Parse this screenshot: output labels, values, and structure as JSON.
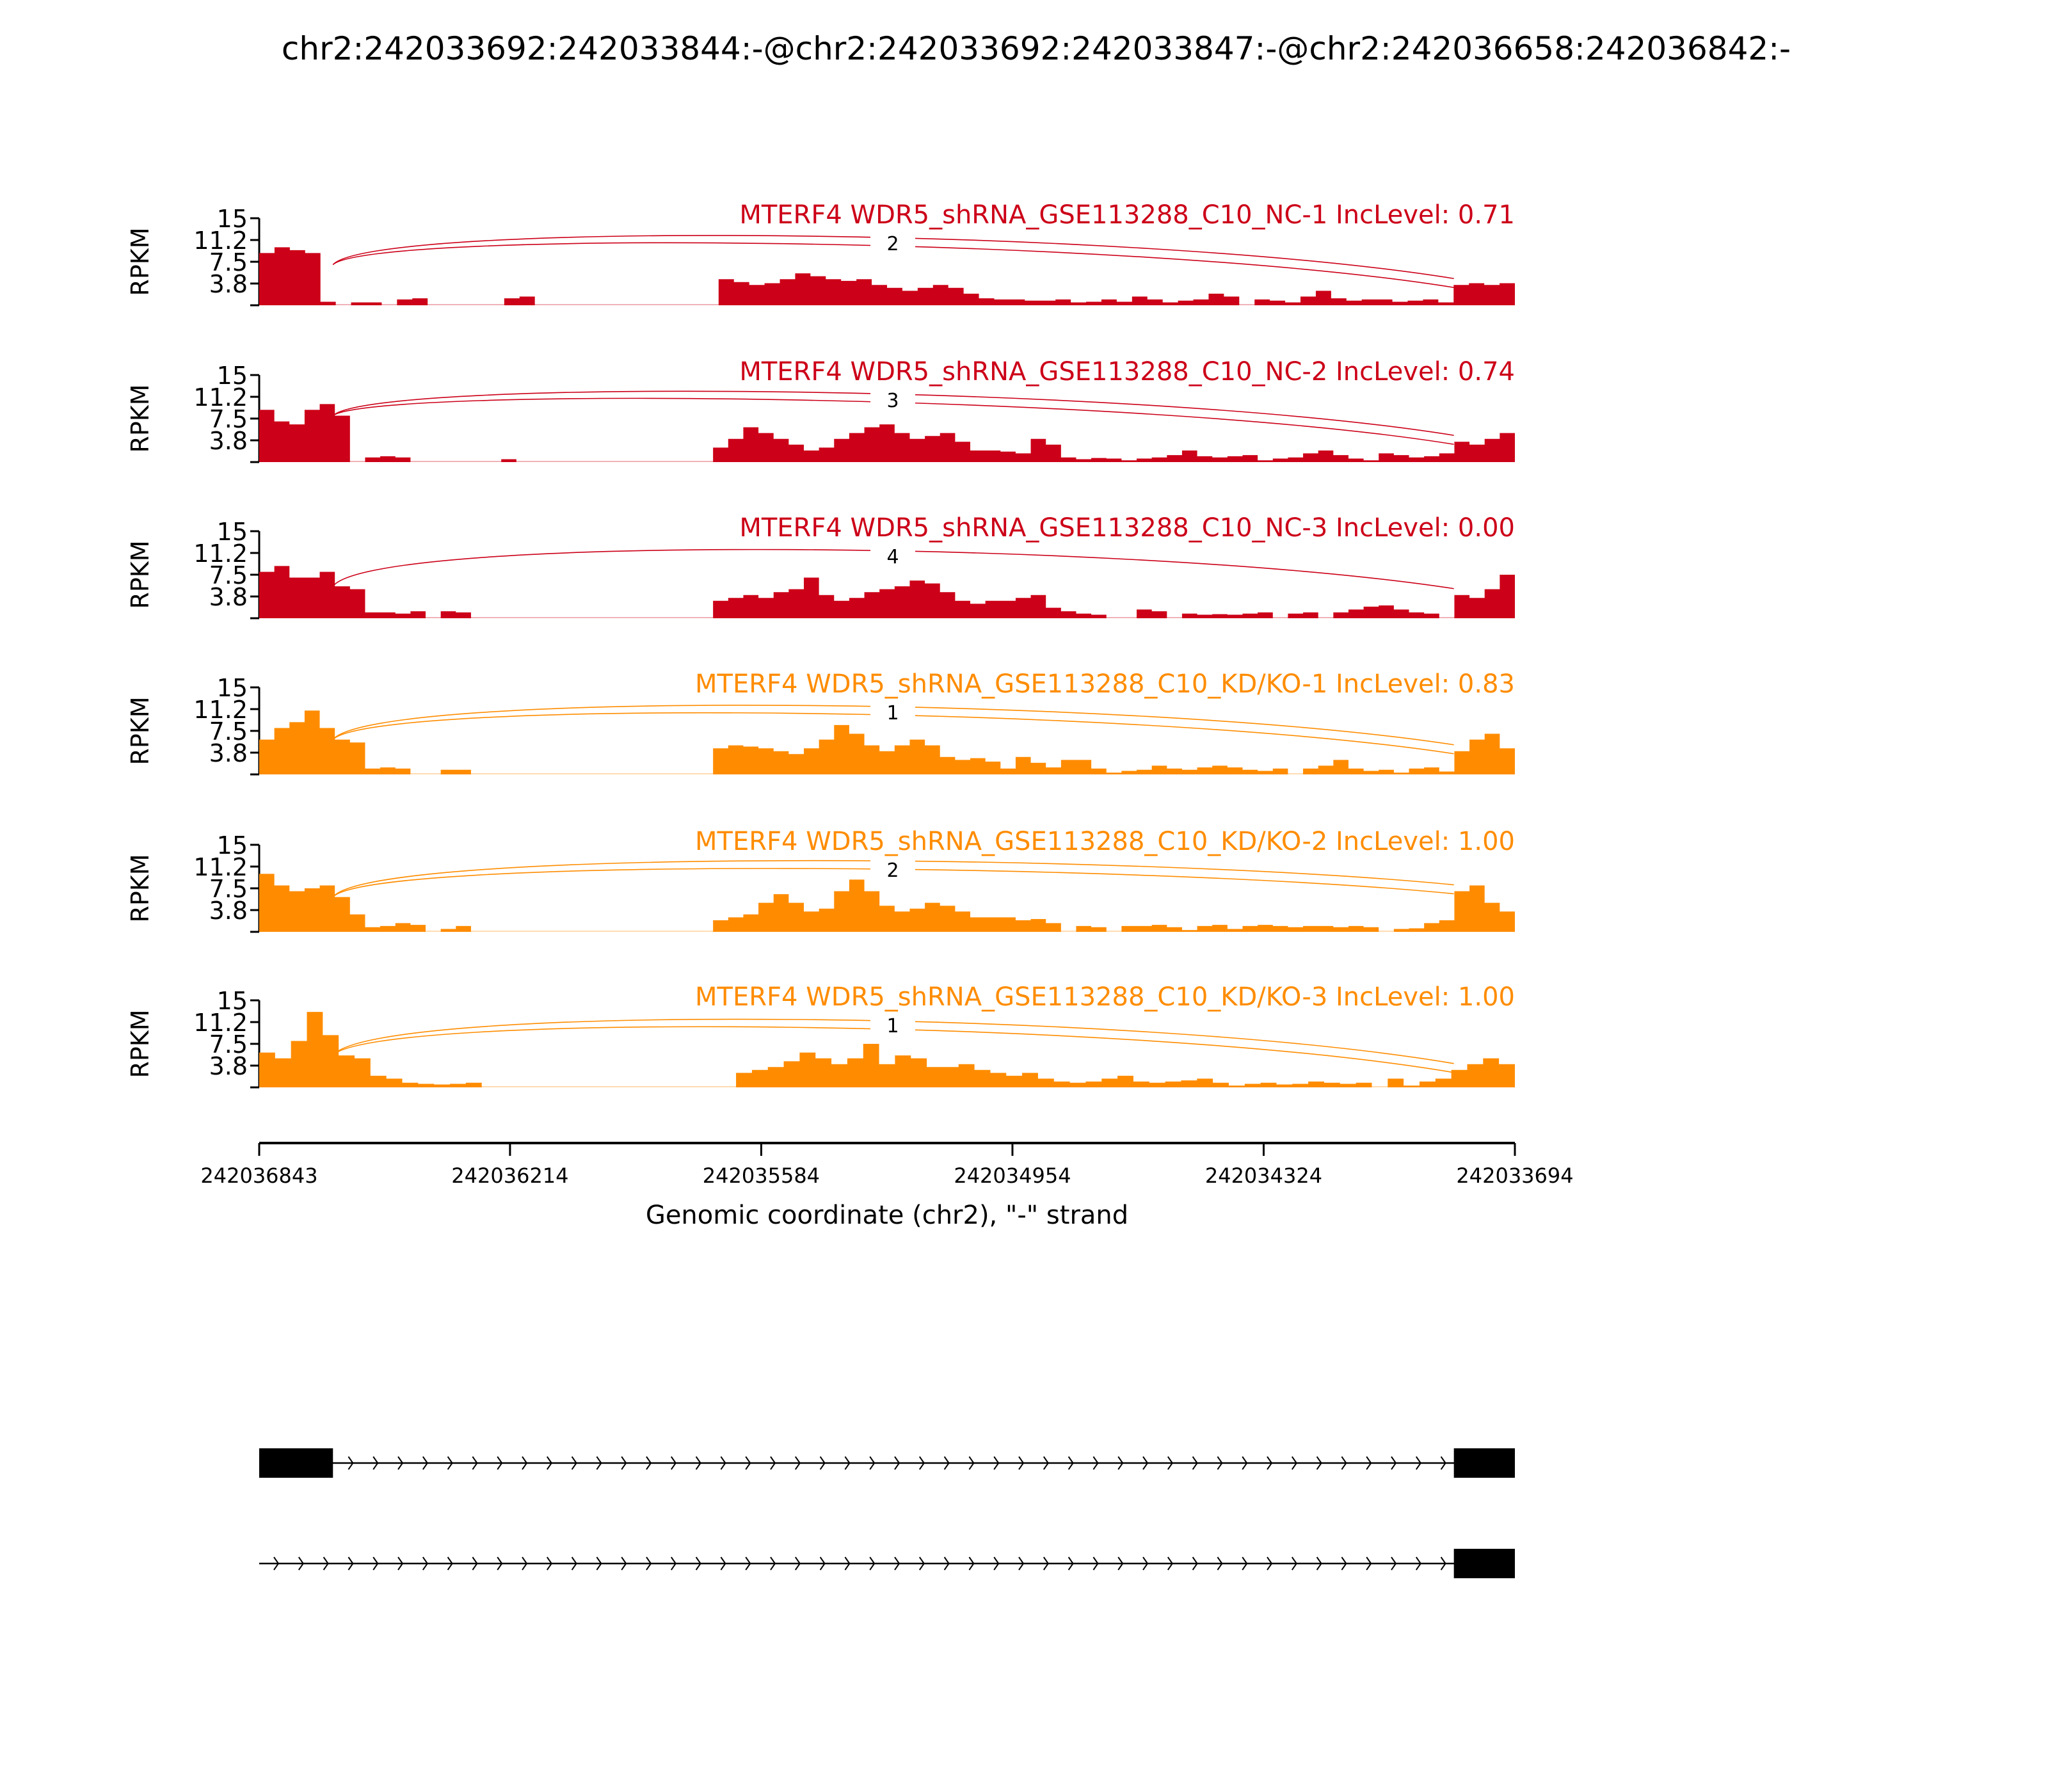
{
  "title": "chr2:242033692:242033844:-@chr2:242033692:242033847:-@chr2:242036658:242036842:-",
  "ylabel": "RPKM",
  "colors": {
    "nc": "#cc0018",
    "kd": "#ff8c00"
  },
  "chart_data": {
    "type": "area",
    "title": "chr2:242033692:242033844:-@chr2:242033692:242033847:-@chr2:242036658:242036842:-",
    "xlabel": "Genomic coordinate (chr2), \"-\" strand",
    "ylabel": "RPKM",
    "xlim": [
      242036843,
      242033694
    ],
    "ylim": [
      0,
      15
    ],
    "yticks": [
      "15",
      "11.2",
      "7.5",
      "3.8"
    ],
    "xticks": [
      "242036843",
      "242036214",
      "242035584",
      "242034954",
      "242034324",
      "242033694"
    ],
    "series": [
      {
        "name": "MTERF4 WDR5_shRNA_GSE113288_C10_NC-1 IncLevel: 0.71",
        "group": "nc",
        "junction_count": "2",
        "arcs": 2,
        "coverage": [
          9,
          10,
          9.5,
          9,
          0.6,
          0,
          0.5,
          0.5,
          0,
          1,
          1.2,
          0,
          0,
          0,
          0,
          0,
          1.2,
          1.5,
          0,
          0,
          0,
          0,
          0,
          0,
          0,
          0,
          0,
          0,
          0,
          0,
          4.5,
          4,
          3.5,
          3.8,
          4.5,
          5.5,
          5,
          4.5,
          4.2,
          4.5,
          3.5,
          3,
          2.5,
          3,
          3.5,
          3,
          2,
          1.2,
          1,
          1,
          0.8,
          0.8,
          1,
          0.5,
          0.6,
          1,
          0.6,
          1.5,
          1,
          0.5,
          0.8,
          1,
          2,
          1.5,
          0,
          1,
          0.8,
          0.5,
          1.5,
          2.5,
          1.2,
          0.8,
          1,
          1,
          0.6,
          0.8,
          1,
          0.5,
          3.5,
          3.8,
          3.5,
          3.8
        ]
      },
      {
        "name": "MTERF4 WDR5_shRNA_GSE113288_C10_NC-2 IncLevel: 0.74",
        "group": "nc",
        "junction_count": "3",
        "arcs": 2,
        "coverage": [
          9,
          7,
          6.5,
          9,
          10,
          8,
          0,
          0.8,
          1,
          0.8,
          0,
          0,
          0,
          0,
          0,
          0,
          0.5,
          0,
          0,
          0,
          0,
          0,
          0,
          0,
          0,
          0,
          0,
          0,
          0,
          0,
          2.5,
          4,
          6,
          5,
          4,
          3,
          2,
          2.5,
          4,
          5,
          6,
          6.5,
          5,
          4,
          4.5,
          5,
          3.5,
          2,
          2,
          1.8,
          1.5,
          4,
          3,
          0.8,
          0.5,
          0.7,
          0.6,
          0.3,
          0.6,
          0.8,
          1.2,
          2,
          1,
          0.8,
          1,
          1.2,
          0.3,
          0.6,
          0.8,
          1.5,
          2,
          1.2,
          0.6,
          0.3,
          1.5,
          1.2,
          0.8,
          1,
          1.5,
          3.5,
          3,
          4,
          5
        ]
      },
      {
        "name": "MTERF4 WDR5_shRNA_GSE113288_C10_NC-3 IncLevel: 0.00",
        "group": "nc",
        "junction_count": "4",
        "arcs": 1,
        "coverage": [
          8,
          9,
          7,
          7,
          8,
          5.5,
          5,
          1,
          1,
          0.8,
          1.2,
          0,
          1.2,
          1,
          0,
          0,
          0,
          0,
          0,
          0,
          0,
          0,
          0,
          0,
          0,
          0,
          0,
          0,
          0,
          0,
          3,
          3.5,
          4,
          3.5,
          4.5,
          5,
          7,
          4,
          3,
          3.5,
          4.5,
          5,
          5.5,
          6.5,
          6,
          4.5,
          3,
          2.5,
          3,
          3,
          3.5,
          4,
          1.8,
          1.2,
          0.8,
          0.6,
          0,
          0,
          1.5,
          1.2,
          0,
          0.8,
          0.6,
          0.7,
          0.6,
          0.8,
          1,
          0,
          0.8,
          1,
          0,
          1,
          1.5,
          2,
          2.2,
          1.5,
          1,
          0.8,
          0,
          4,
          3.5,
          5,
          7.5
        ]
      },
      {
        "name": "MTERF4 WDR5_shRNA_GSE113288_C10_KD/KO-1 IncLevel: 0.83",
        "group": "kd",
        "junction_count": "1",
        "arcs": 2,
        "coverage": [
          6,
          8,
          9,
          11,
          8,
          6,
          5.5,
          1,
          1.2,
          1,
          0,
          0,
          0.8,
          0.8,
          0,
          0,
          0,
          0,
          0,
          0,
          0,
          0,
          0,
          0,
          0,
          0,
          0,
          0,
          0,
          0,
          4.5,
          5,
          4.8,
          4.5,
          4,
          3.5,
          4.5,
          6,
          8.5,
          7,
          5,
          4,
          5,
          6,
          5,
          3,
          2.5,
          2.8,
          2.2,
          1,
          3,
          2,
          1.2,
          2.5,
          2.5,
          1,
          0.3,
          0.6,
          0.8,
          1.5,
          1,
          0.8,
          1.2,
          1.5,
          1.2,
          0.8,
          0.6,
          1,
          0,
          1,
          1.5,
          2.5,
          1,
          0.6,
          0.8,
          0.3,
          1,
          1.2,
          0.5,
          4,
          6,
          7,
          4.5
        ]
      },
      {
        "name": "MTERF4 WDR5_shRNA_GSE113288_C10_KD/KO-2 IncLevel: 1.00",
        "group": "kd",
        "junction_count": "2",
        "arcs": 2,
        "coverage": [
          10,
          8,
          7,
          7.5,
          8,
          6,
          3,
          0.8,
          1,
          1.5,
          1.2,
          0,
          0.5,
          1,
          0,
          0,
          0,
          0,
          0,
          0,
          0,
          0,
          0,
          0,
          0,
          0,
          0,
          0,
          0,
          0,
          2,
          2.5,
          3,
          5,
          6.5,
          5,
          3.5,
          4,
          7,
          9,
          7,
          4.5,
          3.5,
          4,
          5,
          4.5,
          3.5,
          2.5,
          2.5,
          2.5,
          2,
          2.2,
          1.5,
          0,
          1,
          0.8,
          0,
          1,
          1,
          1.2,
          0.8,
          0.3,
          1,
          1.2,
          0.5,
          1,
          1.2,
          1,
          0.8,
          1,
          1,
          0.8,
          1,
          0.8,
          0,
          0.5,
          0.6,
          1.5,
          2,
          7,
          8,
          5,
          3.5
        ]
      },
      {
        "name": "MTERF4 WDR5_shRNA_GSE113288_C10_KD/KO-3 IncLevel: 1.00",
        "group": "kd",
        "junction_count": "1",
        "arcs": 2,
        "coverage": [
          6,
          5,
          8,
          13,
          9,
          5.5,
          5,
          2,
          1.5,
          0.8,
          0.6,
          0.5,
          0.6,
          0.8,
          0,
          0,
          0,
          0,
          0,
          0,
          0,
          0,
          0,
          0,
          0,
          0,
          0,
          0,
          0,
          0,
          2.5,
          3,
          3.5,
          4.5,
          6,
          5,
          4,
          5,
          7.5,
          4,
          5.5,
          5,
          3.5,
          3.5,
          4,
          3,
          2.5,
          2,
          2.5,
          1.5,
          1,
          0.8,
          1,
          1.5,
          2,
          1,
          0.8,
          1,
          1.2,
          1.5,
          0.8,
          0.3,
          0.6,
          0.8,
          0.5,
          0.6,
          1,
          0.8,
          0.6,
          0.8,
          0,
          1.5,
          0.3,
          1,
          1.5,
          3,
          4,
          5,
          4
        ]
      }
    ],
    "gene_models": [
      {
        "exons": [
          [
            242036843,
            242036658
          ],
          [
            242033847,
            242033694
          ]
        ]
      },
      {
        "exons": [
          [
            242033847,
            242033694
          ]
        ]
      }
    ]
  }
}
